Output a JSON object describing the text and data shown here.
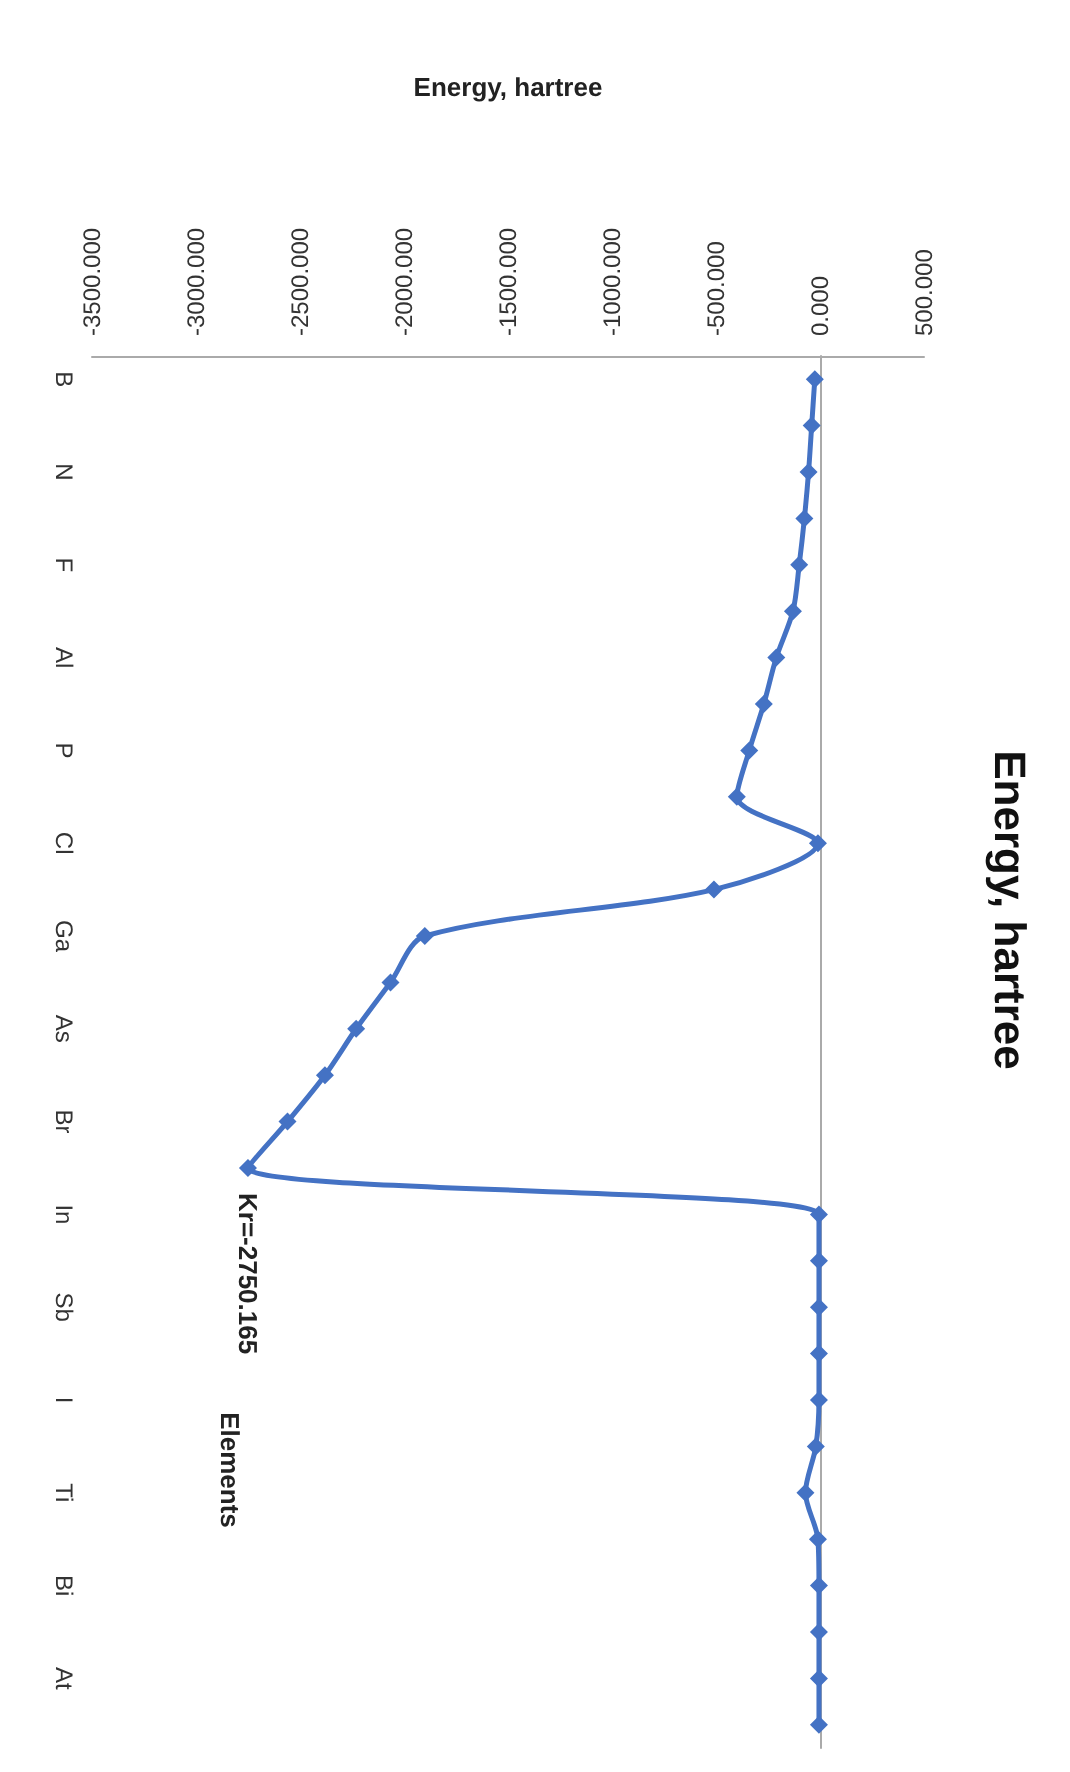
{
  "chart_data": {
    "type": "line",
    "title": "Energy, hartree",
    "xlabel": "Energy, hartree",
    "ylabel": "Elements",
    "orientation": "horizontal",
    "marker": "diamond",
    "line_style": "solid",
    "categories": [
      "B",
      null,
      "N",
      null,
      "F",
      null,
      "Al",
      null,
      "P",
      null,
      "Cl",
      null,
      "Ga",
      null,
      "As",
      null,
      "Br",
      null,
      "In",
      null,
      "Sb",
      null,
      "I",
      null,
      "Ti",
      null,
      "Bi",
      null,
      "At",
      null
    ],
    "series": [
      {
        "color": "#4472c4",
        "values": [
          -25,
          -40,
          -55,
          -75,
          -100,
          -130,
          -210,
          -270,
          -340,
          -400,
          -10,
          -510,
          -1900,
          -2065,
          -2230,
          -2380,
          -2560,
          -2750.165,
          -5,
          -5,
          -5,
          -5,
          -5,
          -20,
          -70,
          -10,
          -5,
          -5,
          -5,
          -5
        ],
        "value_labels": [
          null,
          null,
          null,
          null,
          null,
          null,
          null,
          null,
          null,
          null,
          null,
          null,
          null,
          null,
          null,
          null,
          null,
          "Kr=-2750.165",
          null,
          null,
          null,
          null,
          null,
          null,
          null,
          null,
          null,
          null,
          null,
          null
        ]
      }
    ],
    "xlim": [
      -3500,
      500
    ],
    "xticks": [
      {
        "value": -3500,
        "label": "-3500.000"
      },
      {
        "value": -3000,
        "label": "-3000.000"
      },
      {
        "value": -2500,
        "label": "-2500.000"
      },
      {
        "value": -2000,
        "label": "-2000.000"
      },
      {
        "value": -1500,
        "label": "-1500.000"
      },
      {
        "value": -1000,
        "label": "-1000.000"
      },
      {
        "value": -500,
        "label": "-500.000"
      },
      {
        "value": 0,
        "label": "0.000"
      },
      {
        "value": 500,
        "label": "500.000"
      }
    ]
  }
}
